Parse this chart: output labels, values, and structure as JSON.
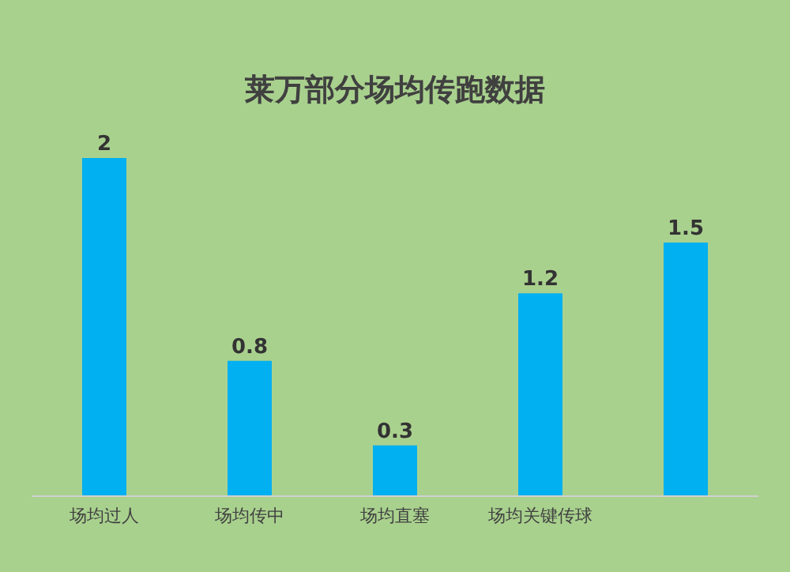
{
  "chart_data": {
    "type": "bar",
    "title": "莱万部分场均传跑数据",
    "categories": [
      "场均过人",
      "场均传中",
      "场均直塞",
      "场均关键传球",
      null
    ],
    "values": [
      2,
      0.8,
      0.3,
      1.2,
      1.5
    ],
    "color": "#00b0f0",
    "data_labels": true
  }
}
